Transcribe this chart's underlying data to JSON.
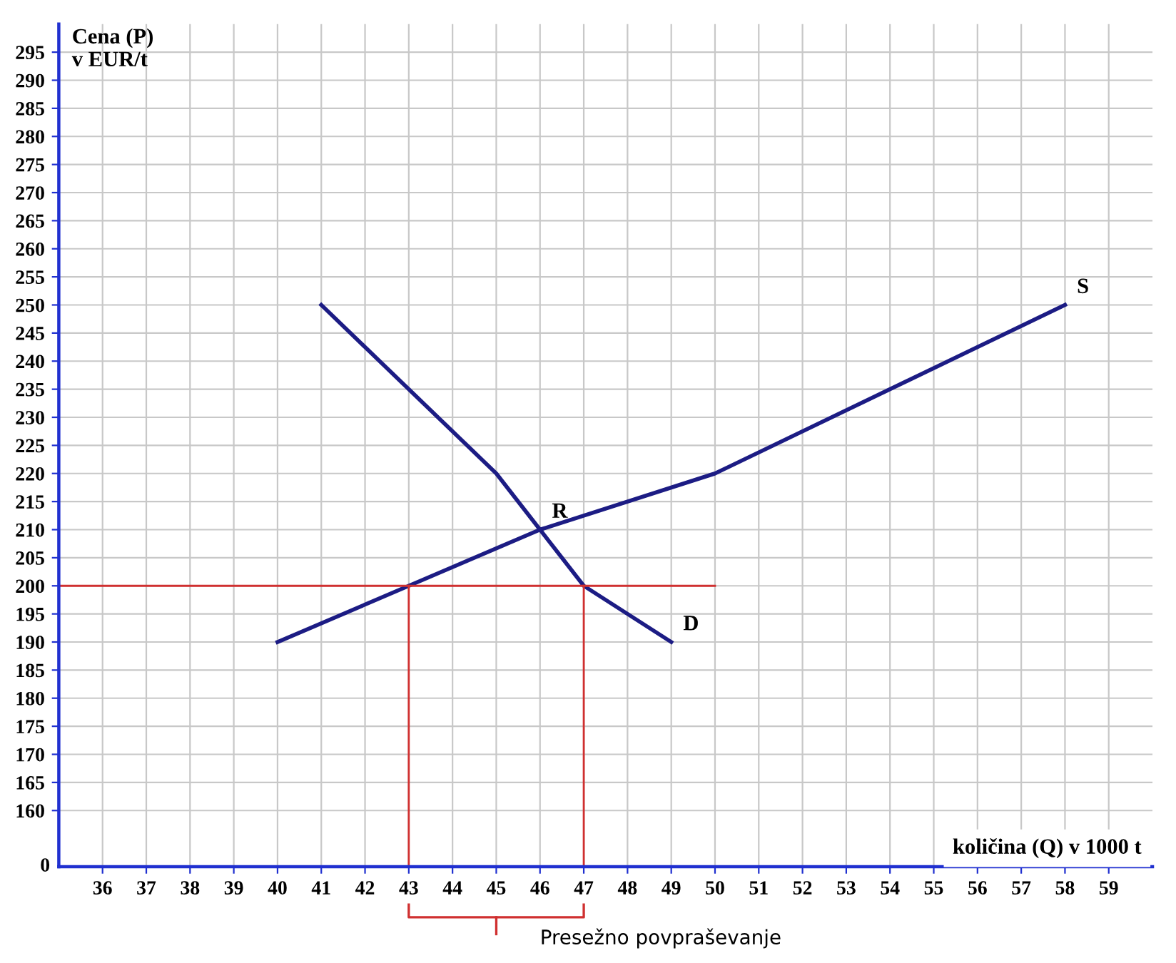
{
  "chart_data": {
    "type": "line",
    "xlabel": "količina (Q) v 1000 t",
    "ylabel": "Cena (P)\nv EUR/t",
    "xlim": [
      35,
      60
    ],
    "ylim": [
      150,
      300
    ],
    "xticks": [
      36,
      37,
      38,
      39,
      40,
      41,
      42,
      43,
      44,
      45,
      46,
      47,
      48,
      49,
      50,
      51,
      52,
      53,
      54,
      55,
      56,
      57,
      58,
      59
    ],
    "yticks": [
      160,
      165,
      170,
      175,
      180,
      185,
      190,
      195,
      200,
      205,
      210,
      215,
      220,
      225,
      230,
      235,
      240,
      245,
      250,
      255,
      260,
      265,
      270,
      275,
      280,
      285,
      290,
      295
    ],
    "grid": true,
    "marker": "none",
    "line_style": "solid",
    "series": [
      {
        "color": "#1c1c84",
        "x": [
          40,
          43,
          46,
          50,
          58
        ],
        "values": [
          190,
          200,
          210,
          220,
          250
        ]
      },
      {
        "color": "#1c1c84",
        "x": [
          41,
          45,
          46,
          47,
          49
        ],
        "values": [
          250,
          220,
          210,
          200,
          190
        ]
      },
      {
        "color": "#d03030",
        "x": [
          35,
          50
        ],
        "values": [
          200,
          200
        ]
      },
      {
        "color": "#d03030",
        "x": [
          43,
          43
        ],
        "values": [
          150,
          200
        ]
      },
      {
        "color": "#d03030",
        "x": [
          47,
          47
        ],
        "values": [
          150,
          200
        ]
      }
    ],
    "annotations": [
      {
        "text": "R",
        "x": 46,
        "y": 210
      },
      {
        "text": "S",
        "x": 58,
        "y": 250
      },
      {
        "text": "D",
        "x": 49,
        "y": 190
      },
      "0",
      "Presežno povpraševanje"
    ]
  }
}
